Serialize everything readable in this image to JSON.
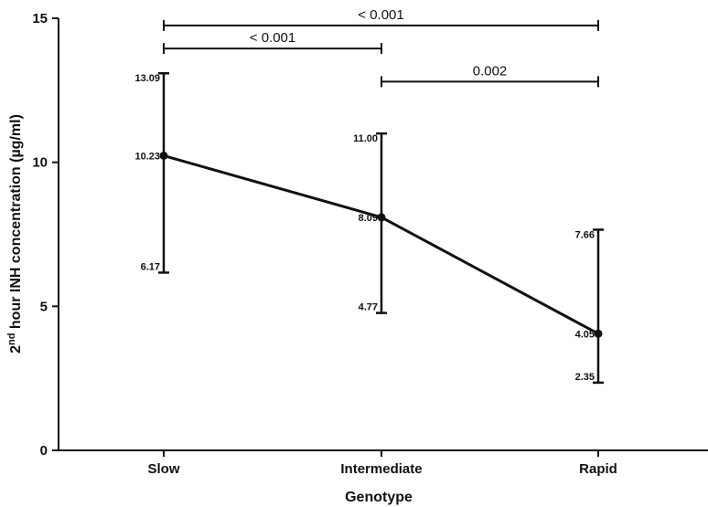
{
  "chart_data": {
    "type": "line",
    "xlabel": "Genotype",
    "ylabel": {
      "prefix": "2",
      "superscript": "nd",
      "rest": " hour INH concentration (µg/ml)"
    },
    "categories": [
      "Slow",
      "Intermediate",
      "Rapid"
    ],
    "ylim": [
      0,
      15
    ],
    "yticks": [
      0,
      5,
      10,
      15
    ],
    "yticks_labels": [
      "0",
      "5",
      "10",
      "15"
    ],
    "grid": false,
    "series": [
      {
        "values": [
          10.23,
          8.09,
          4.05
        ],
        "value_labels": [
          "10.23",
          "8.09",
          "4.05"
        ],
        "upper": [
          13.09,
          11.0,
          7.66
        ],
        "upper_labels": [
          "13.09",
          "11.00",
          "7.66"
        ],
        "lower": [
          6.17,
          4.77,
          2.35
        ],
        "lower_labels": [
          "6.17",
          "4.77",
          "2.35"
        ]
      }
    ],
    "comparisons": [
      {
        "from": 0,
        "to": 2,
        "label": "< 0.001",
        "y": 14.75
      },
      {
        "from": 0,
        "to": 1,
        "label": "< 0.001",
        "y": 13.95
      },
      {
        "from": 1,
        "to": 2,
        "label": "0.002",
        "y": 12.8
      }
    ]
  }
}
